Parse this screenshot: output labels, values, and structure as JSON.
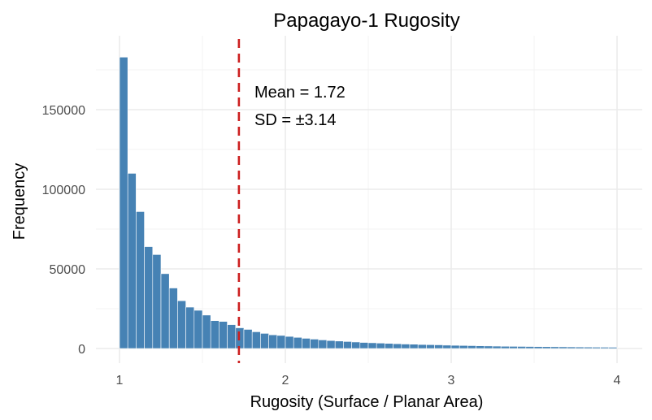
{
  "chart_data": {
    "type": "bar",
    "title": "Papagayo-1 Rugosity",
    "xlabel": "Rugosity (Surface / Planar Area)",
    "ylabel": "Frequency",
    "xlim": [
      1,
      4
    ],
    "ylim": [
      0,
      185000
    ],
    "x_ticks": [
      1,
      2,
      3,
      4
    ],
    "y_ticks": [
      0,
      50000,
      100000,
      150000
    ],
    "bin_start": 1,
    "bin_width": 0.05,
    "values": [
      183000,
      110000,
      86000,
      64000,
      59000,
      47000,
      38000,
      30000,
      26000,
      24000,
      21000,
      17500,
      17000,
      15000,
      13000,
      12000,
      10500,
      9500,
      8600,
      8200,
      7600,
      7000,
      6400,
      5900,
      5400,
      5000,
      4700,
      4400,
      4100,
      3800,
      3600,
      3400,
      3200,
      3000,
      2800,
      2700,
      2500,
      2400,
      2300,
      2100,
      2000,
      1900,
      1800,
      1700,
      1600,
      1500,
      1400,
      1350,
      1300,
      1250,
      1200,
      1150,
      1100,
      1050,
      1000,
      950,
      900,
      850,
      820,
      790
    ],
    "mean_line": 1.72,
    "mean_label": "Mean = 1.72",
    "sd_label": "SD = ±3.14",
    "grid": true,
    "legend": "none",
    "colors": {
      "bar": "#4682B4",
      "mean_line": "#CC1F1F",
      "grid_major": "#EBEBEB",
      "grid_minor": "#F3F3F3"
    }
  }
}
